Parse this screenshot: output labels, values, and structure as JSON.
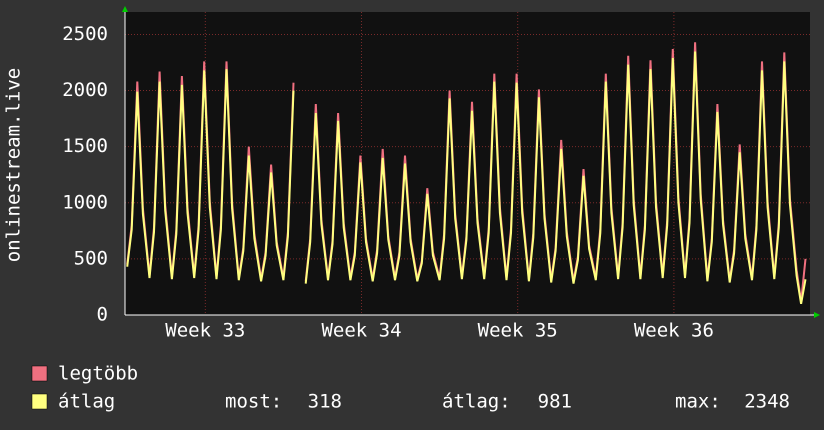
{
  "chart_data": {
    "type": "line",
    "y_label": "onlinestream.live",
    "x": [
      0.1,
      0.3,
      0.55,
      0.8,
      1.1,
      1.3,
      1.55,
      1.8,
      2.1,
      2.3,
      2.55,
      2.8,
      3.1,
      3.3,
      3.55,
      3.8,
      4.1,
      4.3,
      4.55,
      4.8,
      5.1,
      5.3,
      5.55,
      5.8,
      6.1,
      6.3,
      6.55,
      6.8,
      7.1,
      7.3,
      7.55,
      7.8,
      8.1,
      8.3,
      8.55,
      8.8,
      9.1,
      9.3,
      9.55,
      9.8,
      10.1,
      10.3,
      10.55,
      10.8,
      11.1,
      11.3,
      11.55,
      11.8,
      12.1,
      12.3,
      12.55,
      12.8,
      13.1,
      13.3,
      13.55,
      13.8,
      14.1,
      14.3,
      14.55,
      14.8,
      15.1,
      15.3,
      15.55,
      15.8,
      16.1,
      16.3,
      16.55,
      16.8,
      17.1,
      17.3,
      17.55,
      17.8,
      18.1,
      18.3,
      18.55,
      18.8,
      19.1,
      19.3,
      19.55,
      19.8,
      20.1,
      20.3,
      20.55,
      20.8,
      21.1,
      21.3,
      21.55,
      21.8,
      22.1,
      22.3,
      22.55,
      22.8,
      23.1,
      23.3,
      23.55,
      23.8,
      24.1,
      24.3,
      24.55,
      24.8,
      25.1,
      25.3,
      25.55,
      25.8,
      26.1,
      26.3,
      26.55,
      26.8,
      27.1,
      27.3,
      27.55,
      27.8,
      28.1,
      28.3,
      28.55,
      28.8,
      29.1,
      29.3,
      29.55,
      29.8,
      30.1,
      30.3,
      30.5
    ],
    "series": [
      {
        "name": "legtöbb",
        "color": "#f07080",
        "values": [
          450,
          800,
          2080,
          950,
          350,
          780,
          2170,
          980,
          340,
          760,
          2130,
          960,
          350,
          800,
          2260,
          1010,
          340,
          800,
          2260,
          1000,
          330,
          600,
          1500,
          720,
          320,
          560,
          1340,
          650,
          330,
          740,
          2070,
          null,
          300,
          680,
          1880,
          850,
          330,
          660,
          1800,
          820,
          330,
          560,
          1420,
          680,
          320,
          580,
          1480,
          700,
          330,
          560,
          1420,
          680,
          320,
          480,
          1130,
          560,
          330,
          720,
          2000,
          900,
          340,
          700,
          1900,
          860,
          340,
          770,
          2150,
          960,
          330,
          770,
          2150,
          960,
          320,
          730,
          2010,
          900,
          310,
          600,
          1560,
          740,
          300,
          520,
          1300,
          620,
          330,
          770,
          2150,
          960,
          340,
          820,
          2310,
          1030,
          340,
          800,
          2270,
          1010,
          350,
          840,
          2370,
          1050,
          350,
          860,
          2430,
          1080,
          320,
          680,
          1880,
          850,
          310,
          580,
          1520,
          720,
          330,
          800,
          2260,
          1010,
          340,
          820,
          2340,
          1040,
          400,
          120,
          500
        ]
      },
      {
        "name": "átlag",
        "color": "#ffff80",
        "values": [
          430,
          760,
          1990,
          900,
          330,
          740,
          2080,
          930,
          320,
          720,
          2050,
          910,
          330,
          760,
          2180,
          960,
          320,
          760,
          2190,
          950,
          310,
          570,
          1420,
          680,
          300,
          530,
          1270,
          620,
          310,
          700,
          2000,
          null,
          280,
          650,
          1800,
          810,
          310,
          630,
          1730,
          780,
          310,
          530,
          1360,
          650,
          300,
          550,
          1400,
          670,
          310,
          530,
          1350,
          650,
          300,
          460,
          1080,
          530,
          310,
          680,
          1930,
          860,
          320,
          670,
          1820,
          820,
          320,
          730,
          2080,
          910,
          310,
          730,
          2070,
          910,
          300,
          690,
          1940,
          860,
          290,
          570,
          1480,
          700,
          280,
          490,
          1240,
          590,
          310,
          730,
          2080,
          910,
          320,
          780,
          2230,
          980,
          320,
          760,
          2190,
          960,
          330,
          800,
          2290,
          1000,
          330,
          820,
          2348,
          1030,
          300,
          650,
          1810,
          810,
          290,
          550,
          1450,
          680,
          310,
          760,
          2180,
          960,
          320,
          780,
          2260,
          990,
          350,
          100,
          318
        ]
      }
    ],
    "xlim": [
      0,
      30.7
    ],
    "xticks": [
      {
        "value": 3.6,
        "label": "Week 33"
      },
      {
        "value": 10.6,
        "label": "Week 34"
      },
      {
        "value": 17.6,
        "label": "Week 35"
      },
      {
        "value": 24.6,
        "label": "Week 36"
      }
    ],
    "ylim": [
      0,
      2700
    ],
    "yticks": [
      0,
      500,
      1000,
      1500,
      2000,
      2500
    ],
    "grid": true,
    "stats": [
      {
        "label": "most:",
        "value": 318
      },
      {
        "label": "átlag:",
        "value": 981
      },
      {
        "label": "max:",
        "value": 2348
      }
    ]
  }
}
